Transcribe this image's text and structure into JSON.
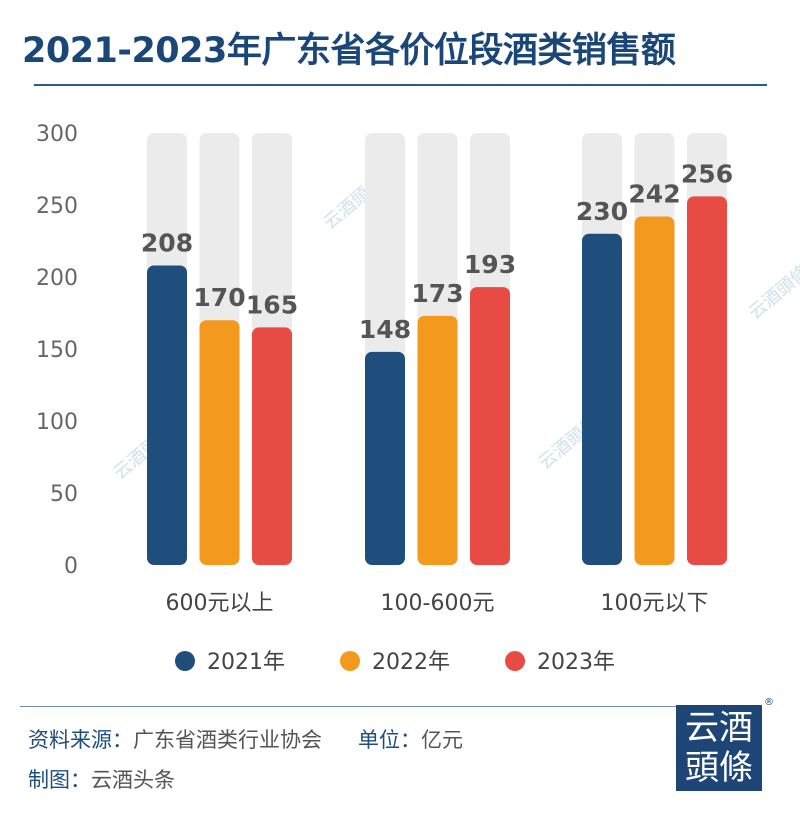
{
  "title": "2021-2023年广东省各价位段酒类销售额",
  "footer": {
    "source_label": "资料来源：",
    "source": "广东省酒类行业协会",
    "unit_label": "单位：",
    "unit": "亿元",
    "maker_label": "制图：",
    "maker": "云酒头条"
  },
  "logo": {
    "text": "云酒頭條",
    "reg": "®"
  },
  "watermark": "云酒頭條",
  "colors": {
    "2021年": "#1f4e7c",
    "2022年": "#f39a1e",
    "2023年": "#e84a44",
    "track": "#ebebeb",
    "title": "#1b4778"
  },
  "chart_data": {
    "type": "bar",
    "categories": [
      "600元以上",
      "100-600元",
      "100元以下"
    ],
    "series": [
      {
        "name": "2021年",
        "values": [
          208,
          148,
          230
        ]
      },
      {
        "name": "2022年",
        "values": [
          170,
          173,
          242
        ]
      },
      {
        "name": "2023年",
        "values": [
          165,
          193,
          256
        ]
      }
    ],
    "ylim": [
      0,
      300
    ],
    "yticks": [
      0,
      50,
      100,
      150,
      200,
      250,
      300
    ],
    "legend": "bottom",
    "grid": false
  }
}
